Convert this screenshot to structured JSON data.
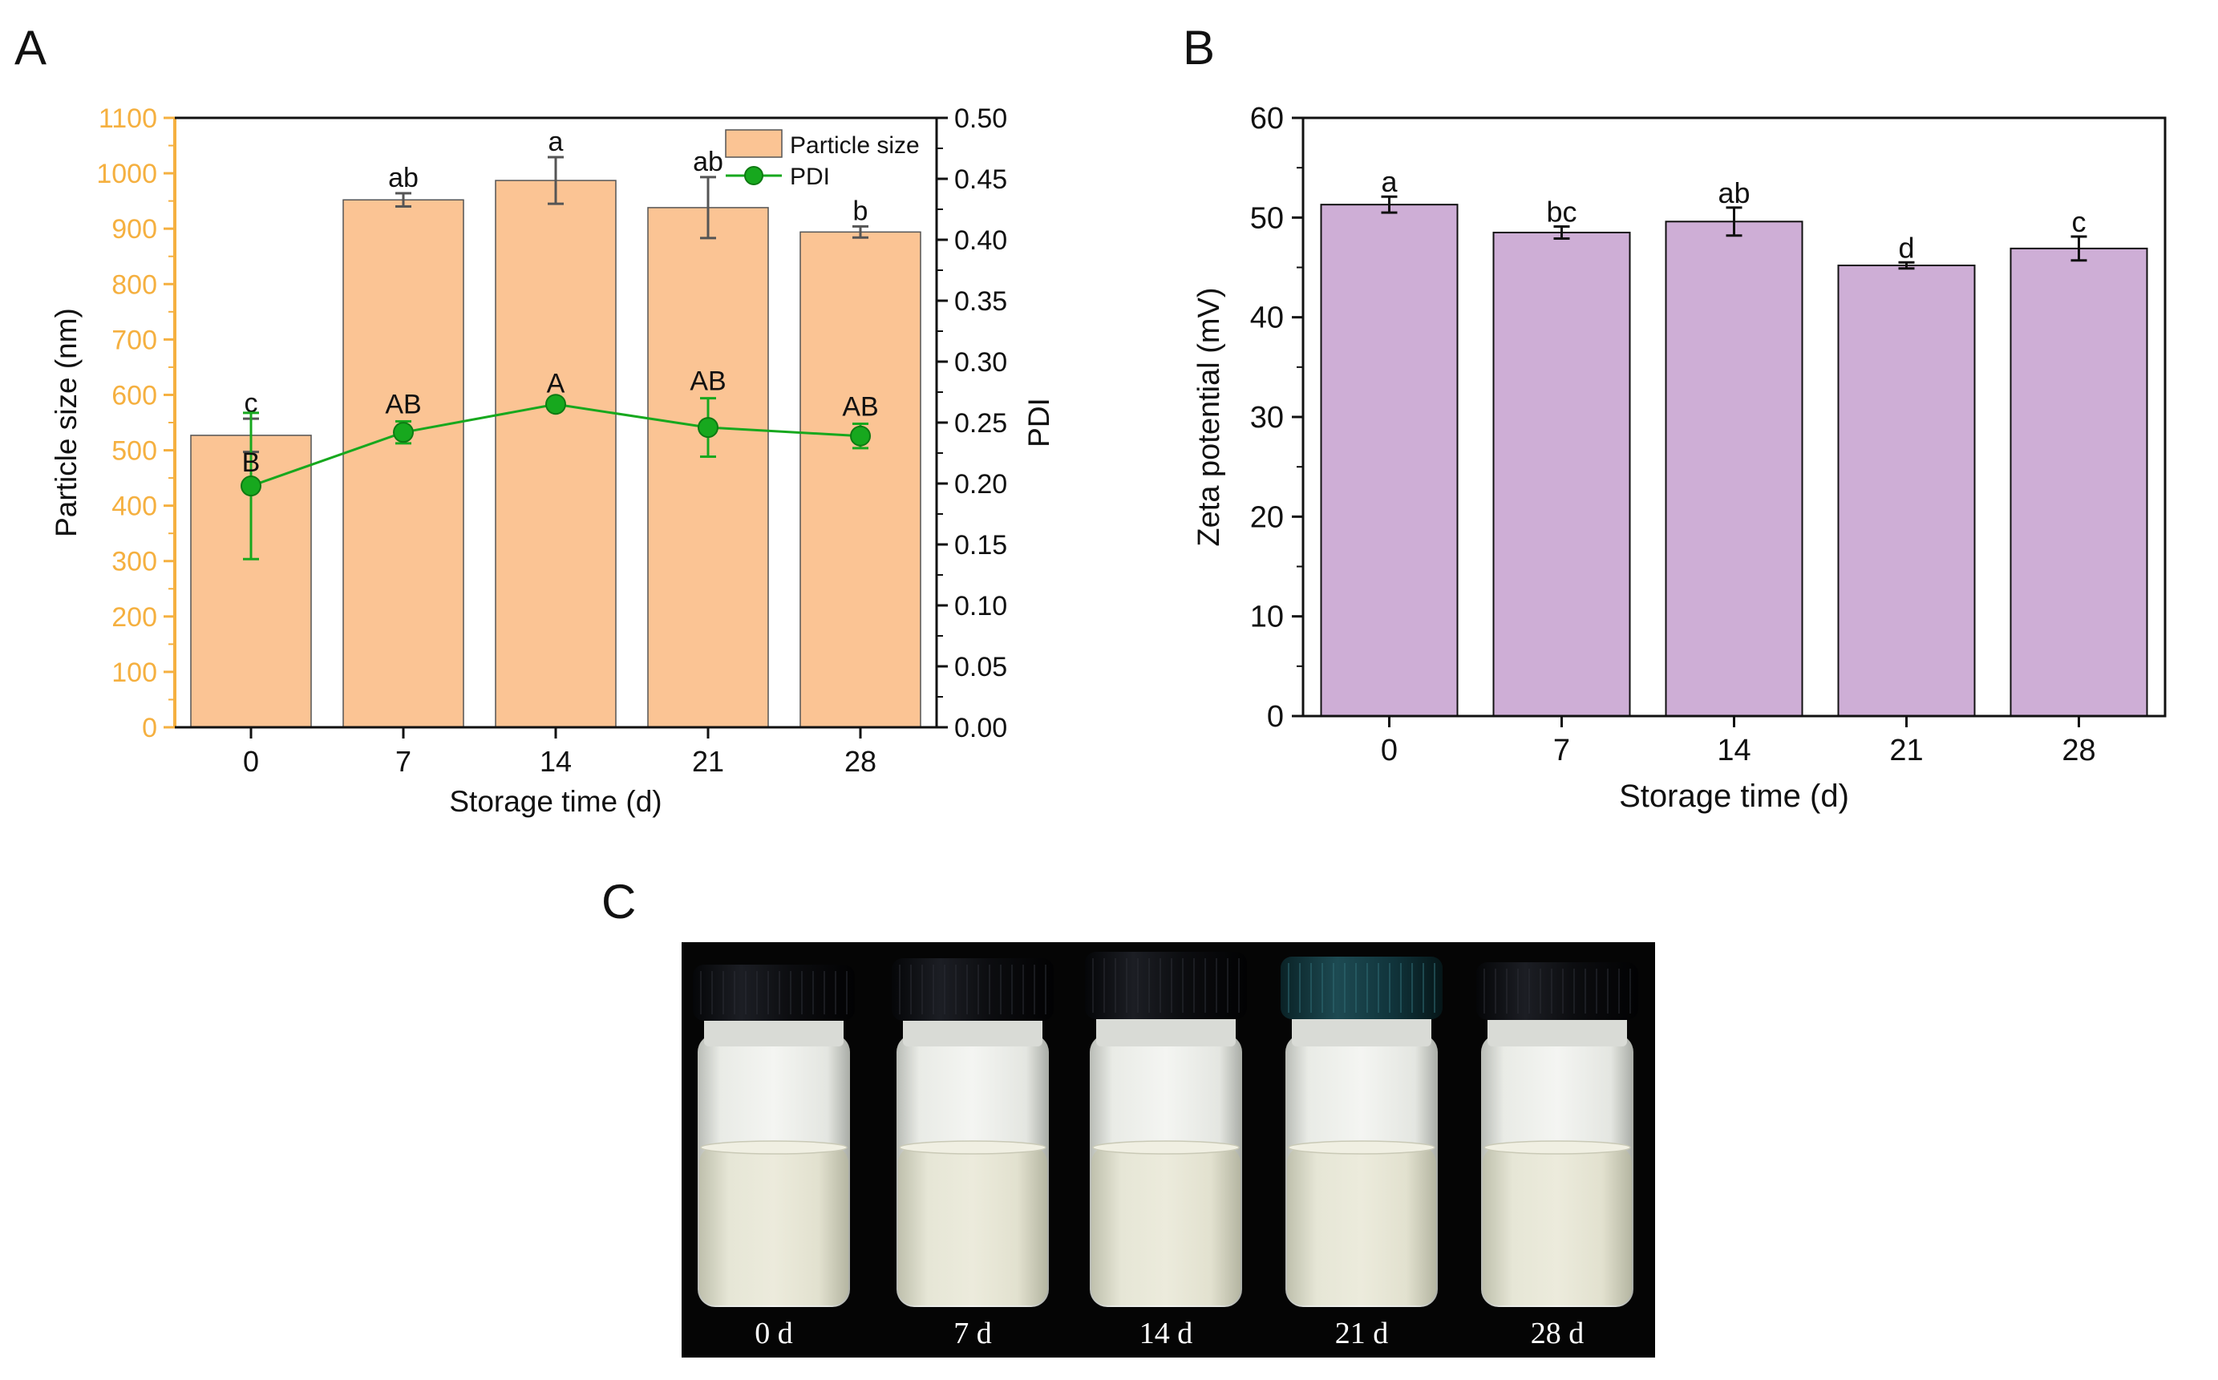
{
  "panels": {
    "a": {
      "label": "A"
    },
    "b": {
      "label": "B"
    },
    "c": {
      "label": "C"
    }
  },
  "colors": {
    "particle_bar": "#fbc494",
    "particle_axis": "#f5b040",
    "pdi_line": "#17a81e",
    "zeta_bar": "#ceaed6",
    "photo_bg": "#050505"
  },
  "chart_data": [
    {
      "id": "A",
      "type": "bar+line",
      "categories": [
        "0",
        "7",
        "14",
        "21",
        "28"
      ],
      "xlabel": "Storage time (d)",
      "ylabel": "Particle size (nm)",
      "y2label": "PDI",
      "ylim": [
        0,
        1100
      ],
      "yticks": [
        0,
        100,
        200,
        300,
        400,
        500,
        600,
        700,
        800,
        900,
        1000,
        1100
      ],
      "y2lim": [
        0,
        0.5
      ],
      "y2ticks": [
        "0.00",
        "0.05",
        "0.10",
        "0.15",
        "0.20",
        "0.25",
        "0.30",
        "0.35",
        "0.40",
        "0.45",
        "0.50"
      ],
      "legend": [
        "Particle size",
        "PDI"
      ],
      "legend_position": "top-right",
      "series": [
        {
          "name": "Particle size",
          "type": "bar",
          "axis": "left",
          "values": [
            527,
            952,
            987,
            938,
            894
          ],
          "errors": [
            30,
            12,
            42,
            55,
            10
          ],
          "letters": [
            "c",
            "ab",
            "a",
            "ab",
            "b"
          ]
        },
        {
          "name": "PDI",
          "type": "line",
          "axis": "right",
          "values": [
            0.198,
            0.242,
            0.265,
            0.246,
            0.239
          ],
          "errors": [
            0.06,
            0.009,
            0.003,
            0.024,
            0.01
          ],
          "letters": [
            "B",
            "AB",
            "A",
            "AB",
            "AB"
          ]
        }
      ]
    },
    {
      "id": "B",
      "type": "bar",
      "categories": [
        "0",
        "7",
        "14",
        "21",
        "28"
      ],
      "xlabel": "Storage time (d)",
      "ylabel": "Zeta potential (mV)",
      "ylim": [
        0,
        60
      ],
      "yticks": [
        0,
        10,
        20,
        30,
        40,
        50,
        60
      ],
      "values": [
        51.3,
        48.5,
        49.6,
        45.2,
        46.9
      ],
      "errors": [
        0.8,
        0.6,
        1.4,
        0.3,
        1.2
      ],
      "letters": [
        "a",
        "bc",
        "ab",
        "d",
        "c"
      ]
    }
  ],
  "photo": {
    "vial_labels": [
      "0 d",
      "7 d",
      "14 d",
      "21 d",
      "28 d"
    ]
  }
}
